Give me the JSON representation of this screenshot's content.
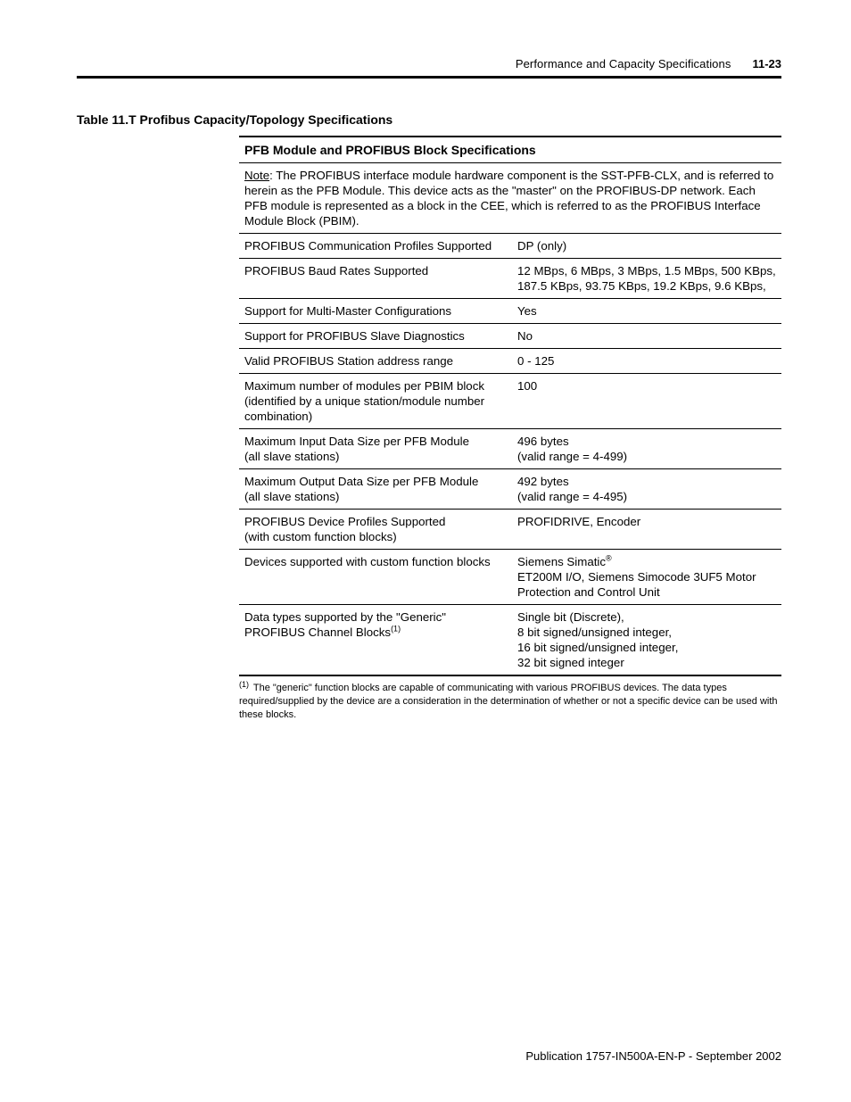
{
  "header": {
    "title": "Performance and Capacity Specifications",
    "page_number": "11-23"
  },
  "table": {
    "caption": "Table 11.T Profibus Capacity/Topology Specifications",
    "section_head": "PFB Module and PROFIBUS Block Specifications",
    "note_label": "Note",
    "note_body": ": The PROFIBUS interface module hardware component is the SST-PFB-CLX, and is referred to herein as the PFB Module. This device acts as the \"master\" on the PROFIBUS-DP network. Each PFB module is represented as a block in the CEE, which is referred to as the PROFIBUS Interface Module Block (PBIM).",
    "rows": {
      "r1": {
        "label": "PROFIBUS Communication Profiles Supported",
        "value": "DP (only)"
      },
      "r2": {
        "label": "PROFIBUS Baud Rates Supported",
        "value": "12 MBps, 6 MBps, 3 MBps, 1.5 MBps, 500 KBps, 187.5 KBps, 93.75 KBps, 19.2 KBps, 9.6 KBps,"
      },
      "r3": {
        "label": "Support for Multi-Master Configurations",
        "value": "Yes"
      },
      "r4": {
        "label": "Support for PROFIBUS Slave Diagnostics",
        "value": "No"
      },
      "r5": {
        "label": "Valid PROFIBUS Station address range",
        "value": "0 - 125"
      },
      "r6": {
        "label": "Maximum number of modules per PBIM block (identified by a unique station/module number combination)",
        "value": "100"
      },
      "r7": {
        "label_line1": "Maximum Input Data Size per PFB Module",
        "label_line2": "(all slave stations)",
        "value_line1": "496 bytes",
        "value_line2": "(valid range = 4-499)"
      },
      "r8": {
        "label_line1": "Maximum Output Data Size per PFB Module",
        "label_line2": "(all slave stations)",
        "value_line1": "492 bytes",
        "value_line2": "(valid range = 4-495)"
      },
      "r9": {
        "label_line1": "PROFIBUS Device Profiles Supported",
        "label_line2": "(with custom function blocks)",
        "value": "PROFIDRIVE, Encoder"
      },
      "r10": {
        "label": "Devices supported with custom function blocks",
        "value_line1": "Siemens Simatic",
        "reg": "®",
        "value_line2": "ET200M I/O, Siemens Simocode 3UF5 Motor Protection and Control Unit"
      },
      "r11": {
        "label_line1": "Data types supported by the \"Generic\" PROFIBUS Channel Blocks",
        "sup": "(1)",
        "value": "Single bit (Discrete),\n8 bit signed/unsigned integer,\n16 bit signed/unsigned integer,\n32 bit signed integer"
      }
    }
  },
  "footnote": {
    "mark": "(1)",
    "text": " The \"generic\" function blocks are capable of communicating with various PROFIBUS devices. The data types required/supplied by the device are a consideration in the determination of whether or not a specific device can be used with these blocks."
  },
  "footer": {
    "pub": "Publication 1757-IN500A-EN-P - September 2002"
  }
}
